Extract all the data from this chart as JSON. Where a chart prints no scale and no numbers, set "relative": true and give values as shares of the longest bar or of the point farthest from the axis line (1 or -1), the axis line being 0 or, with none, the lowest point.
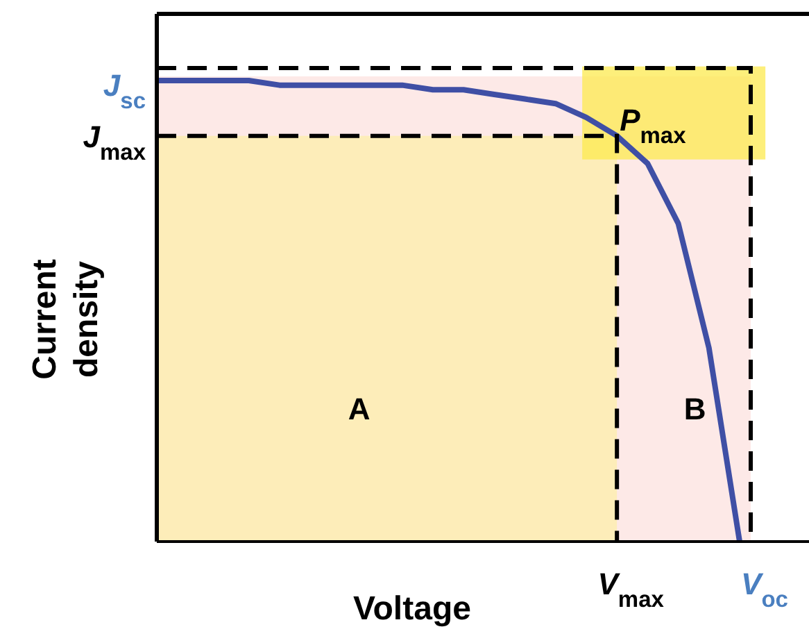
{
  "chart_data": {
    "type": "line",
    "xlabel": "Voltage",
    "ylabel": "Current density",
    "relative": true,
    "categories": [
      null,
      null,
      null,
      null,
      null,
      null,
      null,
      null,
      null,
      null,
      null,
      null,
      null,
      null,
      null,
      null,
      null,
      null,
      null,
      null
    ],
    "series": [
      {
        "color": "#3f4fa5",
        "values": [
          1,
          1,
          1,
          1,
          0.99,
          0.99,
          0.99,
          0.99,
          0.99,
          0.98,
          0.98,
          0.97,
          0.96,
          0.95,
          0.92,
          0.88,
          0.82,
          0.69,
          0.42,
          0
        ]
      }
    ],
    "annotations": [
      "P$_{max}$",
      "J$_{sc}$",
      "J$_{max}$",
      "V$_{max}$",
      "V$_{oc}$",
      "A",
      "B"
    ],
    "marker": "none"
  }
}
